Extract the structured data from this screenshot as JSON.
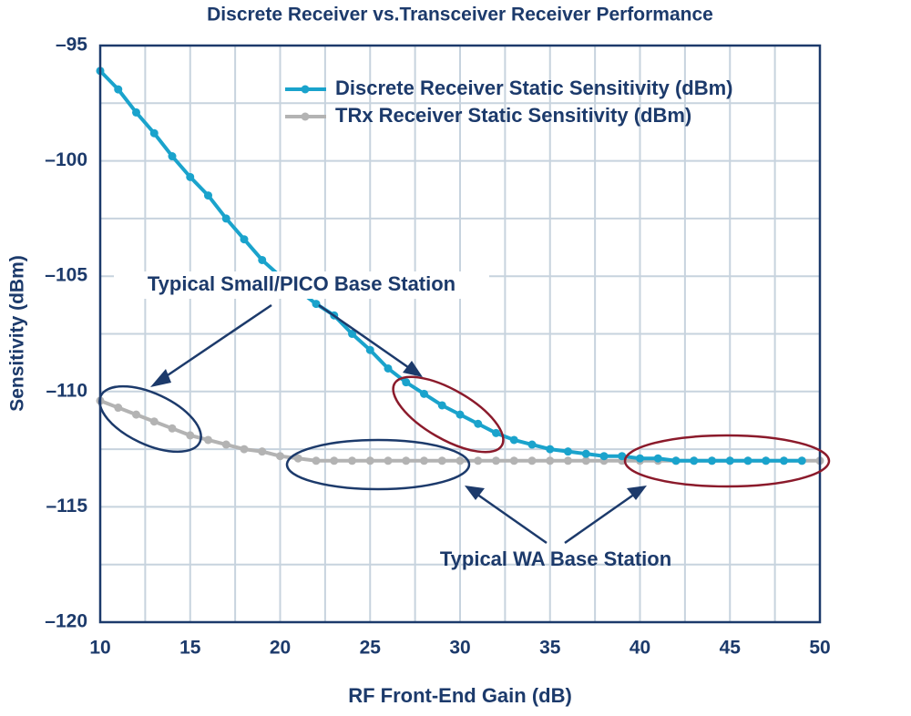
{
  "chart_data": {
    "type": "line",
    "title": "Discrete Receiver vs.Transceiver Receiver Performance",
    "x_label": "RF Front-End Gain (dB)",
    "y_label": "Sensitivity (dBm)",
    "x": [
      10,
      11,
      12,
      13,
      14,
      15,
      16,
      17,
      18,
      19,
      20,
      21,
      22,
      23,
      24,
      25,
      26,
      27,
      28,
      29,
      30,
      31,
      32,
      33,
      34,
      35,
      36,
      37,
      38,
      39,
      40,
      41,
      42,
      43,
      44,
      45,
      46,
      47,
      48,
      49,
      50
    ],
    "series": [
      {
        "name": "Discrete Receiver Static Sensitivity (dBm)",
        "color": "#1aa3cc",
        "values": [
          -96.1,
          -96.9,
          -97.9,
          -98.8,
          -99.8,
          -100.7,
          -101.5,
          -102.5,
          -103.4,
          -104.3,
          -105.0,
          -105.6,
          -106.2,
          -106.7,
          -107.5,
          -108.2,
          -109.0,
          -109.6,
          -110.1,
          -110.6,
          -111.0,
          -111.4,
          -111.8,
          -112.1,
          -112.3,
          -112.5,
          -112.6,
          -112.7,
          -112.8,
          -112.8,
          -112.9,
          -112.9,
          -113.0,
          -113.0,
          -113.0,
          -113.0,
          -113.0,
          -113.0,
          -113.0,
          -113.0,
          null
        ]
      },
      {
        "name": "TRx Receiver Static Sensitivity (dBm)",
        "color": "#b3b3b3",
        "values": [
          -110.4,
          -110.7,
          -111.0,
          -111.3,
          -111.6,
          -111.9,
          -112.1,
          -112.3,
          -112.5,
          -112.6,
          -112.8,
          -112.9,
          -113.0,
          -113.0,
          -113.0,
          -113.0,
          -113.0,
          -113.0,
          -113.0,
          -113.0,
          -113.0,
          -113.0,
          -113.0,
          -113.0,
          -113.0,
          -113.0,
          -113.0,
          -113.0,
          -113.0,
          -113.0,
          -113.0,
          -113.0,
          -113.0,
          -113.0,
          -113.0,
          -113.0,
          -113.0,
          -113.0,
          -113.0,
          -113.0,
          -113.0
        ]
      }
    ],
    "xlim": [
      10,
      50
    ],
    "xticks": [
      10,
      15,
      20,
      25,
      30,
      35,
      40,
      45,
      50
    ],
    "ylim": [
      -120,
      -95
    ],
    "yticks": [
      {
        "value": -95,
        "label": "–95"
      },
      {
        "value": -100,
        "label": "–100"
      },
      {
        "value": -105,
        "label": "–105"
      },
      {
        "value": -110,
        "label": "–110"
      },
      {
        "value": -115,
        "label": "–115"
      },
      {
        "value": -120,
        "label": "–120"
      }
    ],
    "grid": true,
    "legend_position": "upper right",
    "annotations": [
      "Typical Small/PICO Base Station",
      "Typical WA Base Station"
    ]
  }
}
